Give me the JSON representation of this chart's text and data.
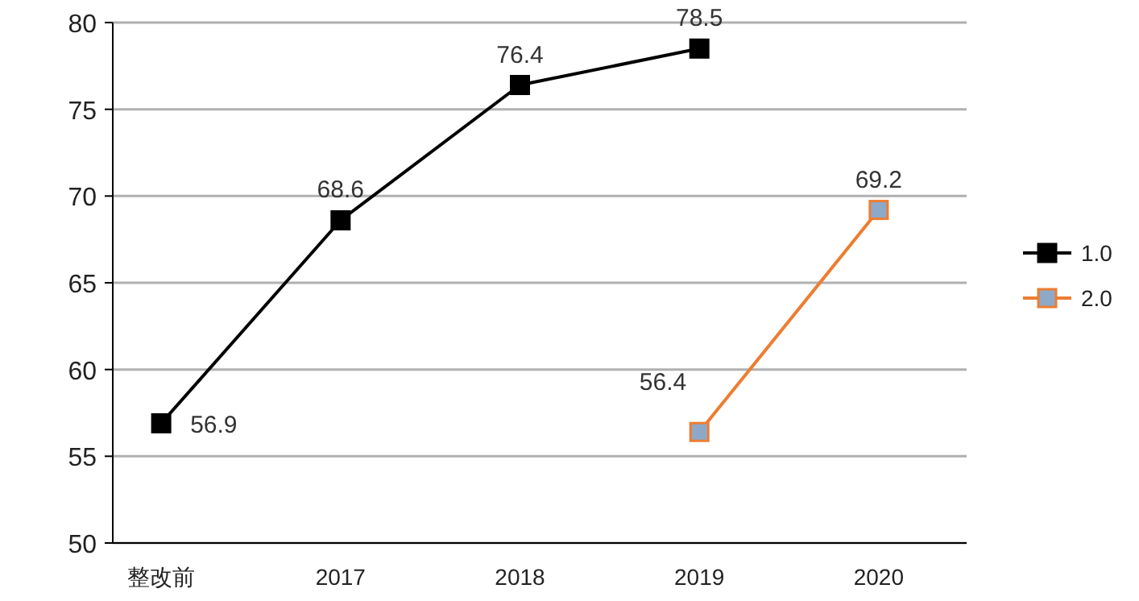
{
  "chart_data": {
    "type": "line",
    "categories": [
      "整改前",
      "2017",
      "2018",
      "2019",
      "2020"
    ],
    "series": [
      {
        "name": "1.0",
        "color": "#000000",
        "values": [
          56.9,
          68.6,
          76.4,
          78.5,
          null
        ]
      },
      {
        "name": "2.0",
        "color": "#ed7d31",
        "values": [
          null,
          null,
          null,
          56.4,
          69.2
        ]
      }
    ],
    "ylim": [
      50,
      80
    ],
    "yticks": [
      50,
      55,
      60,
      65,
      70,
      75,
      80
    ],
    "grid": "y",
    "legend": "right",
    "marker": "square",
    "data_labels": true
  }
}
